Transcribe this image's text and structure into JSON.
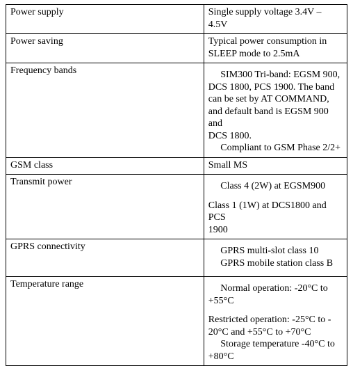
{
  "table": {
    "rows": [
      {
        "label": "Power supply",
        "value_lines": [
          "Single supply voltage 3.4V – 4.5V"
        ]
      },
      {
        "label": "Power saving",
        "value_lines": [
          "Typical power consumption in",
          "SLEEP mode to 2.5mA"
        ]
      },
      {
        "label": "Frequency bands",
        "lead_gap": true,
        "value_lines": [
          "  SIM300 Tri-band: EGSM 900,",
          "DCS 1800, PCS 1900. The band",
          "can be set by AT COMMAND,",
          "and default band is EGSM 900 and",
          "DCS 1800.",
          "  Compliant to GSM Phase 2/2+"
        ]
      },
      {
        "label": "GSM class",
        "value_lines": [
          "Small MS"
        ]
      },
      {
        "label": "Transmit power",
        "lead_gap": true,
        "value_groups": [
          [
            "  Class  4 (2W) at EGSM900"
          ],
          [
            "Class 1 (1W) at DCS1800 and PCS",
            "1900"
          ]
        ]
      },
      {
        "label": "GPRS connectivity",
        "lead_gap": true,
        "value_lines": [
          "  GPRS multi-slot class 10",
          "  GPRS mobile station class B"
        ],
        "trail_gap": true
      },
      {
        "label": "Temperature range",
        "lead_gap": true,
        "value_groups": [
          [
            "  Normal operation: -20°C to",
            "+55°C"
          ],
          [
            "Restricted operation: -25°C to -",
            "20°C and +55°C to +70°C",
            "  Storage temperature  -40°C to",
            "+80°C"
          ]
        ]
      }
    ]
  },
  "style": {
    "font_family": "Times New Roman",
    "font_size_pt": 11,
    "text_color": "#000000",
    "border_color": "#000000",
    "background_color": "#ffffff",
    "col_widths_pct": [
      58,
      42
    ]
  }
}
